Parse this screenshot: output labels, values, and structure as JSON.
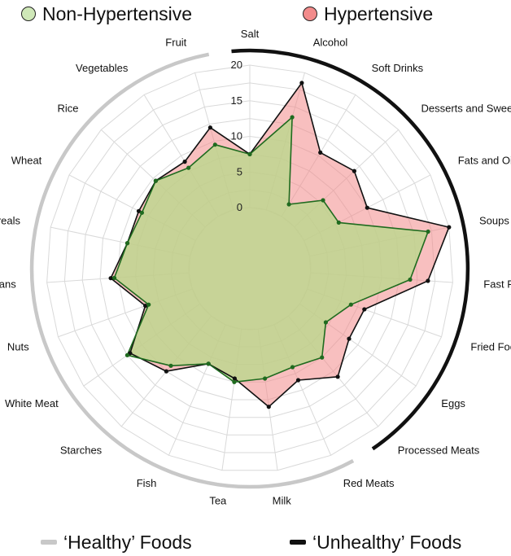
{
  "legend": {
    "series": [
      {
        "name": "Non-Hypertensive",
        "fill": "#cfe8b8",
        "stroke": "#1f6b1f"
      },
      {
        "name": "Hypertensive",
        "fill": "#f28b8b",
        "stroke": "#111111"
      }
    ],
    "groups": [
      {
        "name": "‘Healthy’ Foods",
        "color": "#c8c8c8"
      },
      {
        "name": "‘Unhealthy’ Foods",
        "color": "#111111"
      }
    ]
  },
  "chart_data": {
    "type": "radar",
    "title": "",
    "categories": [
      "Salt",
      "Alcohol",
      "Soft Drinks",
      "Desserts and Sweets",
      "Fats and Oils",
      "Soups",
      "Fast Food",
      "Fried Food",
      "Eggs",
      "Processed Meats",
      "Red Meats",
      "Milk",
      "Tea",
      "Fish",
      "Starches",
      "White Meat",
      "Nuts",
      "Beans",
      "Cereals",
      "Wheat",
      "Rice",
      "Vegetables",
      "Fruit"
    ],
    "series": [
      {
        "name": "Hypertensive",
        "color": "#f28b8b",
        "values": [
          7.5,
          18.5,
          10.5,
          11.5,
          10,
          20,
          16.5,
          8.5,
          8.5,
          11,
          8.5,
          11,
          7,
          6,
          10,
          12,
          7,
          11,
          9,
          9,
          9.5,
          9,
          12
        ]
      },
      {
        "name": "Non-Hypertensive",
        "color": "#cfe8b8",
        "values": [
          7.5,
          13.5,
          2,
          5.5,
          5.5,
          17,
          14,
          6.5,
          4.5,
          7.5,
          6.5,
          7,
          7.5,
          6,
          9,
          12.5,
          6.5,
          10.5,
          9,
          8.5,
          9.5,
          8,
          9.5
        ]
      }
    ],
    "r_ticks": [
      0,
      5,
      10,
      15,
      20
    ],
    "r_range": [
      0,
      20
    ],
    "inner_offset": 0.3,
    "groups": [
      {
        "name": "‘Unhealthy’ Foods",
        "from": "Salt",
        "to": "Processed Meats",
        "color": "#111111"
      },
      {
        "name": "‘Healthy’ Foods",
        "from": "Red Meats",
        "to": "Fruit",
        "color": "#c8c8c8"
      }
    ]
  }
}
